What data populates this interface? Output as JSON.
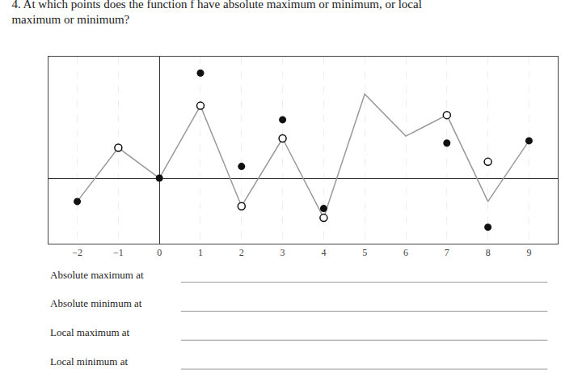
{
  "chart_data": {
    "type": "line",
    "title": "4. At which points does the function f have absolute maximum or minimum, or local maximum or minimum?",
    "annotations": [
      "Absolute maximum at",
      "Absolute minimum at",
      "Local maximum at",
      "Local minimum at"
    ],
    "series": [
      {
        "type": "line",
        "color": "#999999",
        "x": [
          -2,
          -1,
          0
        ],
        "values": [
          -1.0,
          1.3,
          0
        ]
      },
      {
        "type": "line",
        "color": "#999999",
        "x": [
          0,
          1,
          2,
          3,
          4,
          5,
          6,
          7,
          8,
          9
        ],
        "values": [
          0,
          3.1,
          -1.2,
          1.7,
          -1.7,
          3.6,
          1.8,
          2.7,
          -1.0,
          1.6
        ]
      },
      {
        "type": "scatter",
        "marker": "filled",
        "color": "#111111",
        "x": [
          -2,
          0,
          1,
          2,
          3,
          4,
          7,
          8,
          9
        ],
        "values": [
          -1.0,
          0,
          4.5,
          0.5,
          2.5,
          -1.3,
          1.5,
          -2.1,
          1.6
        ]
      },
      {
        "type": "scatter",
        "marker": "open",
        "color": "#111111",
        "x": [
          -1,
          1,
          2,
          3,
          4,
          7,
          8
        ],
        "values": [
          1.3,
          3.1,
          -1.2,
          1.7,
          -1.7,
          2.7,
          0.7
        ]
      }
    ],
    "xlim": [
      -2.7,
      9.7
    ],
    "ylim": [
      -2.8,
      5.2
    ],
    "xticks": [
      {
        "value": -2,
        "label": "−2"
      },
      {
        "value": -1,
        "label": "−1"
      },
      0,
      1,
      2,
      3,
      4,
      5,
      6,
      7,
      8,
      9
    ],
    "tick_labels": "x",
    "grid": true
  }
}
